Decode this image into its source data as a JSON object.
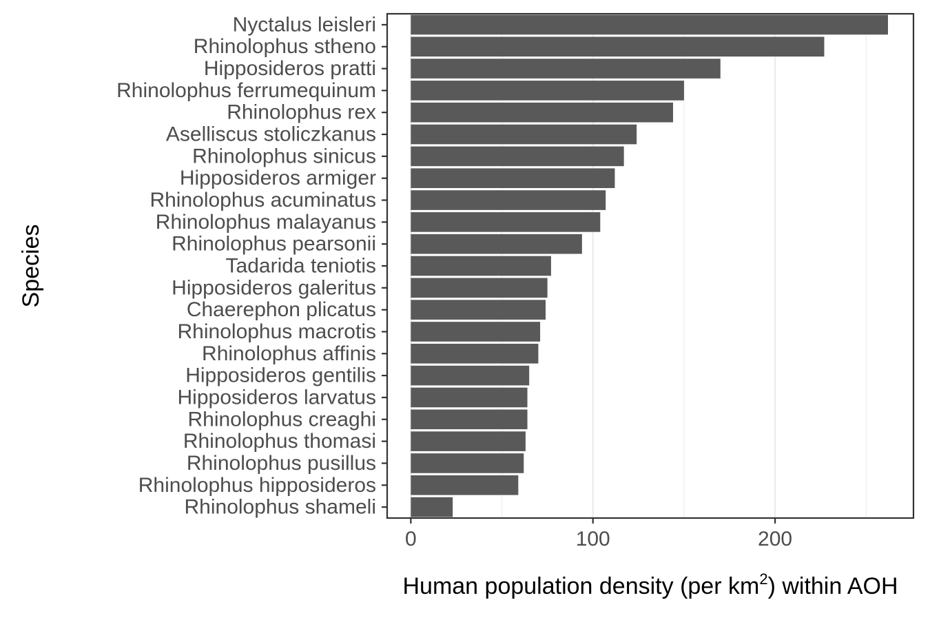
{
  "chart_data": {
    "type": "bar",
    "orientation": "horizontal",
    "categories": [
      "Nyctalus leisleri",
      "Rhinolophus stheno",
      "Hipposideros pratti",
      "Rhinolophus ferrumequinum",
      "Rhinolophus rex",
      "Aselliscus stoliczkanus",
      "Rhinolophus sinicus",
      "Hipposideros armiger",
      "Rhinolophus acuminatus",
      "Rhinolophus malayanus",
      "Rhinolophus pearsonii",
      "Tadarida teniotis",
      "Hipposideros galeritus",
      "Chaerephon plicatus",
      "Rhinolophus macrotis",
      "Rhinolophus affinis",
      "Hipposideros gentilis",
      "Hipposideros larvatus",
      "Rhinolophus creaghi",
      "Rhinolophus thomasi",
      "Rhinolophus pusillus",
      "Rhinolophus hipposideros",
      "Rhinolophus shameli"
    ],
    "values": [
      262,
      227,
      170,
      150,
      144,
      124,
      117,
      112,
      107,
      104,
      94,
      77,
      75,
      74,
      71,
      70,
      65,
      64,
      64,
      63,
      62,
      59,
      23
    ],
    "xlabel_main": "Human population density (per km",
    "xlabel_sup": "2",
    "xlabel_tail": ") within AOH",
    "ylabel": "Species",
    "xlim": [
      -13,
      276
    ],
    "xticks": [
      0,
      100,
      200
    ],
    "xtick_labels": [
      "0",
      "100",
      "200"
    ],
    "grid": true,
    "bar_color": "#595959",
    "grid_color": "#ebebeb",
    "panel_border_color": "#333333"
  }
}
